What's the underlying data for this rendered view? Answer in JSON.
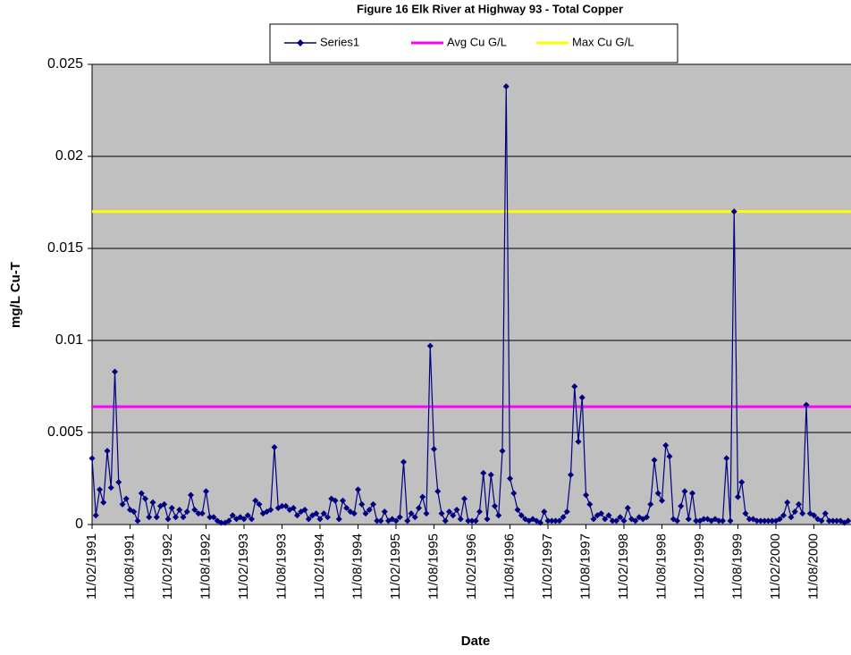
{
  "chart_data": {
    "type": "line",
    "title": "Figure 16 Elk River at Highway 93 - Total Copper",
    "x_label": "Date",
    "y_label": "mg/L Cu-T",
    "categories": [
      "11/02/1991",
      null,
      null,
      null,
      null,
      null,
      null,
      null,
      null,
      null,
      "11/08/1991",
      null,
      null,
      null,
      null,
      null,
      null,
      null,
      null,
      null,
      "11/02/1992",
      null,
      null,
      null,
      null,
      null,
      null,
      null,
      null,
      null,
      "11/08/1992",
      null,
      null,
      null,
      null,
      null,
      null,
      null,
      null,
      null,
      "11/02/1993",
      null,
      null,
      null,
      null,
      null,
      null,
      null,
      null,
      null,
      "11/08/1993",
      null,
      null,
      null,
      null,
      null,
      null,
      null,
      null,
      null,
      "11/02/1994",
      null,
      null,
      null,
      null,
      null,
      null,
      null,
      null,
      null,
      "11/08/1994",
      null,
      null,
      null,
      null,
      null,
      null,
      null,
      null,
      null,
      "11/02/1995",
      null,
      null,
      null,
      null,
      null,
      null,
      null,
      null,
      null,
      "11/08/1995",
      null,
      null,
      null,
      null,
      null,
      null,
      null,
      null,
      null,
      "11/02/1996",
      null,
      null,
      null,
      null,
      null,
      null,
      null,
      null,
      null,
      "11/08/1996",
      null,
      null,
      null,
      null,
      null,
      null,
      null,
      null,
      null,
      "11/02/1997",
      null,
      null,
      null,
      null,
      null,
      null,
      null,
      null,
      null,
      "11/08/1997",
      null,
      null,
      null,
      null,
      null,
      null,
      null,
      null,
      null,
      "11/02/1998",
      null,
      null,
      null,
      null,
      null,
      null,
      null,
      null,
      null,
      "11/08/1998",
      null,
      null,
      null,
      null,
      null,
      null,
      null,
      null,
      null,
      "11/02/1999",
      null,
      null,
      null,
      null,
      null,
      null,
      null,
      null,
      null,
      "11/08/1999",
      null,
      null,
      null,
      null,
      null,
      null,
      null,
      null,
      null,
      "11/02/2000",
      null,
      null,
      null,
      null,
      null,
      null,
      null,
      null,
      null,
      "11/08/2000",
      null,
      null,
      null,
      null,
      null,
      null,
      null,
      null,
      null
    ],
    "series": [
      {
        "name": "Series1",
        "color": "#000080",
        "values": [
          0.0036,
          0.0005,
          0.0019,
          0.0012,
          0.004,
          0.002,
          0.0083,
          0.0023,
          0.0011,
          0.0014,
          0.0008,
          0.0007,
          0.0002,
          0.0017,
          0.0014,
          0.0004,
          0.0012,
          0.0004,
          0.001,
          0.0011,
          0.0003,
          0.0009,
          0.0004,
          0.0008,
          0.0004,
          0.0007,
          0.0016,
          0.0008,
          0.0006,
          0.0006,
          0.0018,
          0.0004,
          0.0004,
          0.0002,
          0.0001,
          0.0001,
          0.0002,
          0.0005,
          0.0003,
          0.0004,
          0.0003,
          0.0005,
          0.0003,
          0.0013,
          0.0011,
          0.0006,
          0.0007,
          0.0008,
          0.0042,
          0.0009,
          0.001,
          0.001,
          0.0008,
          0.0009,
          0.0005,
          0.0007,
          0.0008,
          0.0003,
          0.0005,
          0.0006,
          0.0003,
          0.0006,
          0.0004,
          0.0014,
          0.0013,
          0.0003,
          0.0013,
          0.0009,
          0.0007,
          0.0006,
          0.0019,
          0.0011,
          0.0006,
          0.0008,
          0.0011,
          0.0002,
          0.0002,
          0.0007,
          0.0002,
          0.0003,
          0.0002,
          0.0004,
          0.0034,
          0.0002,
          0.0006,
          0.0004,
          0.0009,
          0.0015,
          0.0006,
          0.0097,
          0.0041,
          0.0018,
          0.0006,
          0.0002,
          0.0007,
          0.0005,
          0.0008,
          0.0003,
          0.0014,
          0.0002,
          0.0002,
          0.0002,
          0.0007,
          0.0028,
          0.0003,
          0.0027,
          0.001,
          0.0005,
          0.004,
          0.0238,
          0.0025,
          0.0017,
          0.0008,
          0.0005,
          0.0003,
          0.0002,
          0.0003,
          0.0002,
          0.0001,
          0.0007,
          0.0002,
          0.0002,
          0.0002,
          0.0002,
          0.0004,
          0.0007,
          0.0027,
          0.0075,
          0.0045,
          0.0069,
          0.0016,
          0.0011,
          0.0003,
          0.0005,
          0.0006,
          0.0003,
          0.0005,
          0.0002,
          0.0002,
          0.0004,
          0.0002,
          0.0009,
          0.0003,
          0.0002,
          0.0004,
          0.0003,
          0.0004,
          0.0011,
          0.0035,
          0.0017,
          0.0013,
          0.0043,
          0.0037,
          0.0003,
          0.0002,
          0.001,
          0.0018,
          0.0003,
          0.0017,
          0.0002,
          0.0002,
          0.0003,
          0.0003,
          0.0002,
          0.0003,
          0.0002,
          0.0002,
          0.0036,
          0.0002,
          0.017,
          0.0015,
          0.0023,
          0.0006,
          0.0003,
          0.0003,
          0.0002,
          0.0002,
          0.0002,
          0.0002,
          0.0002,
          0.0002,
          0.0003,
          0.0005,
          0.0012,
          0.0004,
          0.0007,
          0.0011,
          0.0006,
          0.0065,
          0.0006,
          0.0005,
          0.0003,
          0.0002,
          0.0006,
          0.0002,
          0.0002,
          0.0002,
          0.0002,
          0.0001,
          0.0002
        ]
      }
    ],
    "reference_lines": [
      {
        "name": "Avg Cu G/L",
        "color": "#ff00ff",
        "value": 0.0064
      },
      {
        "name": "Max Cu G/L",
        "color": "#ffff00",
        "value": 0.017
      }
    ],
    "ylim": [
      0,
      0.025
    ],
    "yticks": [
      0,
      0.005,
      0.01,
      0.015,
      0.02,
      0.025
    ],
    "grid": true,
    "legend": "top"
  }
}
